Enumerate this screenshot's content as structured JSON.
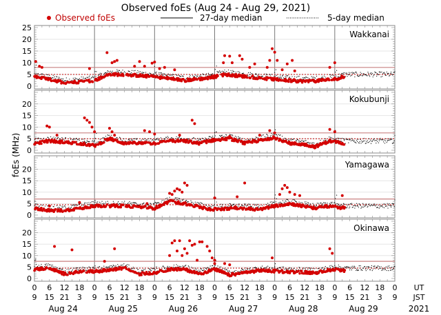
{
  "chart_data": {
    "type": "scatter",
    "title": "Observed foEs (Aug 24 - Aug 29, 2021)",
    "ylabel": "foEs (MHz)",
    "legend": {
      "placement": "top",
      "observed": "Observed foEs",
      "median27": "27-day median",
      "median5": "5-day median"
    },
    "colors": {
      "observed": "#d40000",
      "median27": "#c98080",
      "median5_ref": "#c00000",
      "text": "#000000",
      "observed_legend": "#c00000"
    },
    "ylim": [
      0,
      25
    ],
    "yticks": [
      0,
      5,
      10,
      15,
      20,
      25
    ],
    "x_range_hours": [
      0,
      144
    ],
    "days": [
      "Aug 24",
      "Aug 25",
      "Aug 26",
      "Aug 27",
      "Aug 28",
      "Aug 29"
    ],
    "ut_ticks": [
      "0",
      "6",
      "12",
      "18"
    ],
    "jst_ticks": [
      "9",
      "15",
      "21",
      "3"
    ],
    "ut_label": "UT",
    "jst_label": "JST",
    "year": "2021",
    "stations": [
      {
        "name": "Wakkanai",
        "median27": 8.0,
        "median5": 5.0,
        "data_end_hour": 124,
        "peaks": [
          [
            0.5,
            10.5
          ],
          [
            2,
            8.5
          ],
          [
            3,
            8
          ],
          [
            22,
            7.5
          ],
          [
            29,
            14.3
          ],
          [
            31,
            10
          ],
          [
            32,
            10.5
          ],
          [
            33,
            11
          ],
          [
            40,
            8.5
          ],
          [
            42,
            10.5
          ],
          [
            44,
            8.5
          ],
          [
            47,
            9.8
          ],
          [
            48,
            10.3
          ],
          [
            50,
            7.5
          ],
          [
            52,
            8
          ],
          [
            56,
            7
          ],
          [
            120,
            10
          ],
          [
            118,
            8
          ]
        ],
        "peaks2": [
          [
            75.5,
            10
          ],
          [
            76,
            13
          ],
          [
            78,
            12.8
          ],
          [
            79,
            10
          ],
          [
            82,
            13
          ],
          [
            83,
            11.5
          ],
          [
            86,
            8
          ],
          [
            88,
            9.5
          ],
          [
            93,
            8
          ],
          [
            94,
            11
          ],
          [
            95,
            16
          ],
          [
            96,
            14.5
          ],
          [
            97,
            11
          ],
          [
            99,
            7
          ],
          [
            101,
            9.5
          ],
          [
            103,
            11
          ],
          [
            104,
            6.5
          ]
        ],
        "base_profile": [
          [
            0,
            4
          ],
          [
            8,
            2.5
          ],
          [
            12,
            1.5
          ],
          [
            20,
            2
          ],
          [
            24,
            2.5
          ],
          [
            30,
            5
          ],
          [
            36,
            5
          ],
          [
            48,
            4
          ],
          [
            60,
            2.5
          ],
          [
            70,
            3.5
          ],
          [
            76,
            5
          ],
          [
            90,
            3.5
          ],
          [
            100,
            2.5
          ],
          [
            110,
            2
          ],
          [
            120,
            3
          ],
          [
            124,
            4
          ]
        ]
      },
      {
        "name": "Kokubunji",
        "median27": 7.5,
        "median5": 5.0,
        "data_end_hour": 124,
        "peaks": [
          [
            5,
            10.5
          ],
          [
            6,
            10
          ],
          [
            9,
            6.5
          ],
          [
            20,
            14
          ],
          [
            21,
            13
          ],
          [
            22,
            12
          ],
          [
            23,
            10
          ],
          [
            24,
            8
          ],
          [
            44,
            8.5
          ],
          [
            46,
            8
          ],
          [
            63,
            13
          ],
          [
            64,
            11.5
          ],
          [
            94,
            8.5
          ],
          [
            96,
            7.5
          ],
          [
            118,
            9
          ],
          [
            120,
            8
          ]
        ],
        "peaks2": [
          [
            30,
            9.5
          ],
          [
            31,
            8
          ],
          [
            32,
            6.5
          ],
          [
            48,
            7
          ],
          [
            58,
            6.5
          ],
          [
            78,
            6
          ],
          [
            90,
            6.5
          ]
        ],
        "base_profile": [
          [
            0,
            3
          ],
          [
            6,
            4
          ],
          [
            12,
            3.5
          ],
          [
            18,
            3
          ],
          [
            24,
            2
          ],
          [
            30,
            5
          ],
          [
            36,
            3
          ],
          [
            48,
            3
          ],
          [
            54,
            4
          ],
          [
            60,
            4
          ],
          [
            66,
            3
          ],
          [
            72,
            4.5
          ],
          [
            78,
            5
          ],
          [
            84,
            3
          ],
          [
            96,
            5.5
          ],
          [
            102,
            3
          ],
          [
            108,
            2.5
          ],
          [
            112,
            1.5
          ],
          [
            118,
            4
          ],
          [
            124,
            3
          ]
        ]
      },
      {
        "name": "Yamagawa",
        "median27": 7.0,
        "median5": 4.5,
        "data_end_hour": 124,
        "peaks": [
          [
            54,
            9.5
          ],
          [
            55,
            9
          ],
          [
            56,
            10.5
          ],
          [
            57,
            11.5
          ],
          [
            58,
            11
          ],
          [
            59,
            10
          ],
          [
            60,
            14
          ],
          [
            61,
            13
          ],
          [
            72,
            7.5
          ],
          [
            84,
            14
          ],
          [
            98,
            9
          ],
          [
            99,
            11.5
          ],
          [
            100,
            13
          ],
          [
            101,
            12
          ],
          [
            102,
            10
          ],
          [
            104,
            9
          ],
          [
            106,
            8.5
          ],
          [
            123,
            8.5
          ]
        ],
        "peaks2": [
          [
            6,
            4
          ],
          [
            18,
            5.5
          ],
          [
            45,
            5
          ],
          [
            81,
            8
          ]
        ],
        "base_profile": [
          [
            0,
            3
          ],
          [
            6,
            2
          ],
          [
            12,
            2
          ],
          [
            18,
            3
          ],
          [
            24,
            4
          ],
          [
            36,
            4
          ],
          [
            48,
            3
          ],
          [
            54,
            6
          ],
          [
            60,
            5
          ],
          [
            70,
            2.5
          ],
          [
            80,
            3
          ],
          [
            90,
            2.5
          ],
          [
            96,
            4
          ],
          [
            102,
            5
          ],
          [
            112,
            3
          ],
          [
            118,
            4
          ],
          [
            124,
            3
          ]
        ]
      },
      {
        "name": "Okinawa",
        "median27": 7.5,
        "median5": 4.5,
        "data_end_hour": 124,
        "peaks": [
          [
            8,
            14
          ],
          [
            15,
            12.5
          ],
          [
            32,
            13
          ],
          [
            28,
            7.5
          ],
          [
            54,
            10
          ],
          [
            55,
            15.5
          ],
          [
            56,
            16.5
          ],
          [
            58,
            16.5
          ],
          [
            60,
            13
          ],
          [
            61,
            11
          ],
          [
            62,
            16.5
          ],
          [
            63,
            14.5
          ],
          [
            64,
            15
          ],
          [
            66,
            16
          ],
          [
            67,
            16
          ],
          [
            69,
            14
          ],
          [
            70,
            12
          ],
          [
            71,
            9
          ],
          [
            72,
            8
          ],
          [
            76,
            6.5
          ],
          [
            78,
            6
          ]
        ],
        "peaks2": [
          [
            57,
            12
          ],
          [
            59,
            10
          ],
          [
            65,
            8
          ],
          [
            72,
            6.5
          ],
          [
            95,
            9
          ],
          [
            118,
            13
          ],
          [
            119,
            11
          ]
        ],
        "base_profile": [
          [
            0,
            4
          ],
          [
            6,
            4.5
          ],
          [
            12,
            2
          ],
          [
            18,
            3
          ],
          [
            24,
            3
          ],
          [
            36,
            4.5
          ],
          [
            42,
            2
          ],
          [
            48,
            2.5
          ],
          [
            54,
            4
          ],
          [
            60,
            4
          ],
          [
            66,
            2
          ],
          [
            72,
            4
          ],
          [
            78,
            1.5
          ],
          [
            90,
            3.5
          ],
          [
            100,
            3
          ],
          [
            112,
            2.5
          ],
          [
            120,
            4
          ],
          [
            124,
            3.5
          ]
        ]
      }
    ]
  }
}
